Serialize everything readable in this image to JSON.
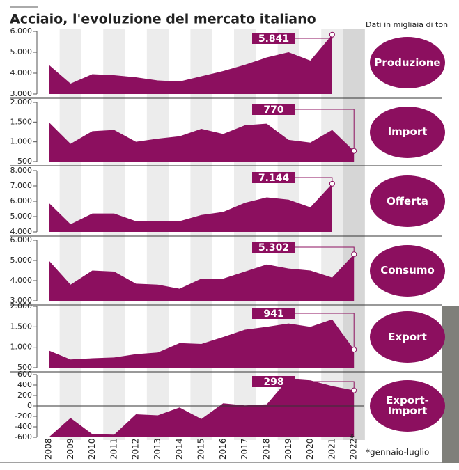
{
  "title": "Acciaio, l'evoluzione del mercato italiano",
  "note": "Dati in migliaia di ton",
  "footnote": "*gennaio-luglio",
  "chart_data": [
    {
      "type": "area",
      "title": "Produzione",
      "color": "#8c0f5f",
      "values": [
        4400,
        3500,
        3950,
        3900,
        3800,
        3650,
        3600,
        3850,
        4100,
        4400,
        4750,
        5000,
        4600,
        5841,
        null
      ],
      "value_labels": [
        null,
        null,
        null,
        null,
        null,
        null,
        null,
        null,
        null,
        null,
        null,
        null,
        null,
        "5.841",
        null
      ],
      "ylim": [
        3000,
        6000
      ],
      "yticks": [
        {
          "value": 3000,
          "label": "3.000"
        },
        {
          "value": 4000,
          "label": "4.000"
        },
        {
          "value": 5000,
          "label": "5.000"
        },
        {
          "value": 6000,
          "label": "6.000"
        }
      ]
    },
    {
      "type": "area",
      "title": "Import",
      "color": "#8c0f5f",
      "values": [
        1500,
        950,
        1270,
        1300,
        1000,
        1080,
        1140,
        1330,
        1200,
        1420,
        1460,
        1050,
        980,
        1300,
        770
      ],
      "value_labels": [
        null,
        null,
        null,
        null,
        null,
        null,
        null,
        null,
        null,
        null,
        null,
        null,
        null,
        null,
        "770"
      ],
      "ylim": [
        500,
        2000
      ],
      "yticks": [
        500,
        {
          "value": 1000,
          "label": "1.000"
        },
        {
          "value": 1500,
          "label": "1.500"
        },
        {
          "value": 2000,
          "label": "2.000"
        }
      ]
    },
    {
      "type": "area",
      "title": "Offerta",
      "color": "#8c0f5f",
      "values": [
        5900,
        4500,
        5200,
        5200,
        4700,
        4700,
        4700,
        5100,
        5300,
        5900,
        6250,
        6100,
        5600,
        7144,
        null
      ],
      "value_labels": [
        null,
        null,
        null,
        null,
        null,
        null,
        null,
        null,
        null,
        null,
        null,
        null,
        null,
        "7.144",
        null
      ],
      "ylim": [
        4000,
        8000
      ],
      "yticks": [
        {
          "value": 4000,
          "label": "4.000"
        },
        {
          "value": 5000,
          "label": "5.000"
        },
        {
          "value": 6000,
          "label": "6.000"
        },
        {
          "value": 7000,
          "label": "7.000"
        },
        {
          "value": 8000,
          "label": "8.000"
        }
      ]
    },
    {
      "type": "area",
      "title": "Consumo",
      "color": "#8c0f5f",
      "values": [
        5000,
        3800,
        4500,
        4450,
        3850,
        3800,
        3600,
        4100,
        4100,
        4450,
        4800,
        4600,
        4500,
        4150,
        5302
      ],
      "value_labels": [
        null,
        null,
        null,
        null,
        null,
        null,
        null,
        null,
        null,
        null,
        null,
        null,
        null,
        null,
        "5.302"
      ],
      "ylim": [
        3000,
        6000
      ],
      "yticks": [
        {
          "value": 3000,
          "label": "3.000"
        },
        {
          "value": 4000,
          "label": "4.000"
        },
        {
          "value": 5000,
          "label": "5.000"
        },
        {
          "value": 6000,
          "label": "6.000"
        }
      ]
    },
    {
      "type": "area",
      "title": "Export",
      "color": "#8c0f5f",
      "values": [
        920,
        700,
        730,
        750,
        830,
        870,
        1100,
        1080,
        1250,
        1430,
        1500,
        1580,
        1500,
        1680,
        941
      ],
      "value_labels": [
        null,
        null,
        null,
        null,
        null,
        null,
        null,
        null,
        null,
        null,
        null,
        null,
        null,
        null,
        "941"
      ],
      "ylim": [
        500,
        2000
      ],
      "yticks": [
        500,
        {
          "value": 1000,
          "label": "1.000"
        },
        {
          "value": 1500,
          "label": "1.500"
        },
        {
          "value": 2000,
          "label": "2.000"
        }
      ]
    },
    {
      "type": "area",
      "title": "Export-\nImport",
      "color": "#8c0f5f",
      "categories": [
        "2008",
        "2009",
        "2010",
        "2011",
        "2012",
        "2013",
        "2014",
        "2015",
        "2016",
        "2017",
        "2018",
        "2019",
        "2020",
        "2021",
        "2022*"
      ],
      "values": [
        -600,
        -230,
        -540,
        -550,
        -160,
        -180,
        -30,
        -250,
        50,
        10,
        30,
        520,
        490,
        380,
        298
      ],
      "value_labels": [
        null,
        null,
        null,
        null,
        null,
        null,
        null,
        null,
        null,
        null,
        null,
        null,
        null,
        null,
        "298"
      ],
      "ylim": [
        -600,
        600
      ],
      "yticks": [
        -600,
        -400,
        -200,
        0,
        200,
        400,
        600
      ]
    }
  ]
}
